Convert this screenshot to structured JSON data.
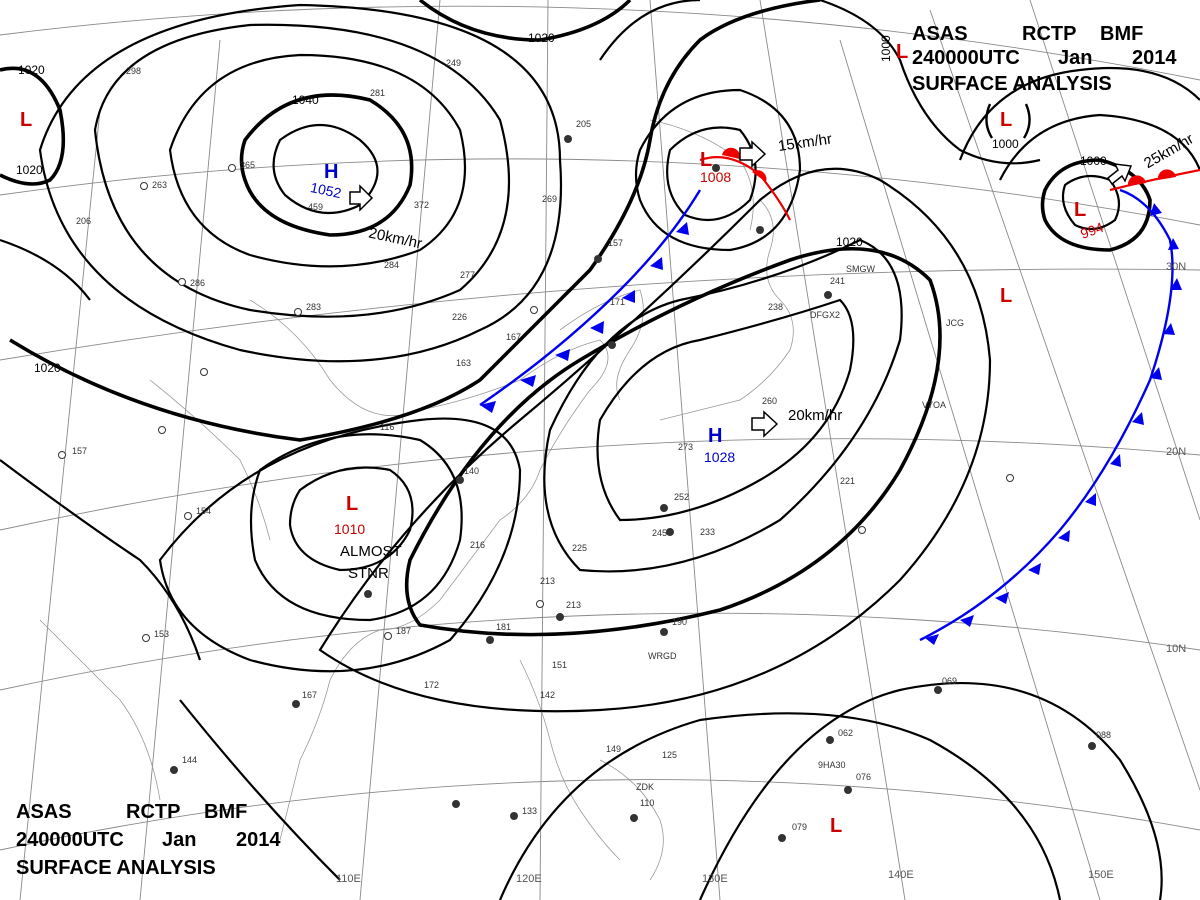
{
  "header_top": {
    "line1": [
      "ASAS",
      "RCTP",
      "BMF"
    ],
    "line2": [
      "240000UTC",
      "Jan",
      "2014"
    ],
    "line3": "SURFACE ANALYSIS"
  },
  "header_bottom": {
    "line1": [
      "ASAS",
      "RCTP",
      "BMF"
    ],
    "line2": [
      "240000UTC",
      "Jan",
      "2014"
    ],
    "line3": "SURFACE ANALYSIS"
  },
  "colors": {
    "high": "#0000cc",
    "low": "#cc0000",
    "cold_front": "#0000ee",
    "warm_front": "#ee0000",
    "isobar": "#000000",
    "grid": "#8a8a8a"
  },
  "systems": [
    {
      "id": "high-siberia",
      "type": "H",
      "pressure": "1052",
      "motion": "20km/hr"
    },
    {
      "id": "high-east-china-sea",
      "type": "H",
      "pressure": "1028",
      "motion": "20km/hr"
    },
    {
      "id": "low-south-china",
      "type": "L",
      "pressure": "1010",
      "motion": "ALMOST STNR"
    },
    {
      "id": "low-hokkaido",
      "type": "L",
      "pressure": "1008",
      "motion": "15km/hr"
    },
    {
      "id": "low-north-pacific",
      "type": "L",
      "pressure": "994",
      "motion": "25km/hr"
    },
    {
      "id": "low-inset",
      "type": "L",
      "pressure": "1000"
    }
  ],
  "unlabeled_lows": [
    "L",
    "L",
    "L"
  ],
  "isobar_labels": [
    "1020",
    "1020",
    "1020",
    "1020",
    "1040",
    "1020",
    "1000",
    "1000"
  ],
  "longitude_labels": [
    "110E",
    "120E",
    "130E",
    "140E",
    "150E"
  ],
  "latitude_labels": [
    "30N",
    "20N",
    "10N"
  ],
  "station_codes": [
    "SMGW",
    "DFGX2",
    "JCG",
    "V7OA",
    "WRGD",
    "9HA30",
    "ZDK"
  ],
  "station_numbers": [
    "298",
    "249",
    "281",
    "205",
    "157",
    "171",
    "167",
    "163",
    "226",
    "277",
    "283",
    "154",
    "157",
    "153",
    "187",
    "167",
    "172",
    "144",
    "140",
    "133",
    "116",
    "216",
    "225",
    "213",
    "213",
    "190",
    "181",
    "151",
    "142",
    "149",
    "125",
    "110",
    "245",
    "233",
    "252",
    "273",
    "260",
    "241",
    "238",
    "221",
    "069",
    "062",
    "076",
    "079",
    "088",
    "286",
    "263",
    "269",
    "206",
    "365",
    "372",
    "459",
    "284"
  ]
}
